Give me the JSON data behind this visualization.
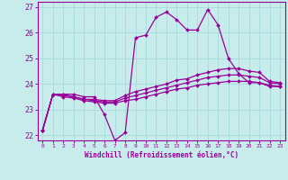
{
  "background_color": "#c8ecec",
  "grid_color": "#aadddd",
  "line_color": "#990099",
  "marker_color": "#990099",
  "xlabel": "Windchill (Refroidissement éolien,°C)",
  "ylim": [
    21.8,
    27.2
  ],
  "xlim": [
    -0.5,
    23.5
  ],
  "yticks": [
    22,
    23,
    24,
    25,
    26,
    27
  ],
  "xticks": [
    0,
    1,
    2,
    3,
    4,
    5,
    6,
    7,
    8,
    9,
    10,
    11,
    12,
    13,
    14,
    15,
    16,
    17,
    18,
    19,
    20,
    21,
    22,
    23
  ],
  "series1_x": [
    0,
    1,
    2,
    3,
    4,
    5,
    6,
    7,
    8,
    9,
    10,
    11,
    12,
    13,
    14,
    15,
    16,
    17,
    18,
    19,
    20,
    21,
    22,
    23
  ],
  "series1_y": [
    22.2,
    23.6,
    23.6,
    23.6,
    23.5,
    23.5,
    22.8,
    21.8,
    22.1,
    25.8,
    25.9,
    26.6,
    26.8,
    26.5,
    26.1,
    26.1,
    26.9,
    26.3,
    25.0,
    24.4,
    24.05,
    24.05,
    23.9,
    23.9
  ],
  "series2_x": [
    0,
    1,
    2,
    3,
    4,
    5,
    6,
    7,
    8,
    9,
    10,
    11,
    12,
    13,
    14,
    15,
    16,
    17,
    18,
    19,
    20,
    21,
    22,
    23
  ],
  "series2_y": [
    22.2,
    23.6,
    23.6,
    23.5,
    23.4,
    23.4,
    23.35,
    23.35,
    23.55,
    23.7,
    23.8,
    23.9,
    24.0,
    24.15,
    24.2,
    24.35,
    24.45,
    24.55,
    24.6,
    24.6,
    24.5,
    24.45,
    24.1,
    24.05
  ],
  "series3_x": [
    0,
    1,
    2,
    3,
    4,
    5,
    6,
    7,
    8,
    9,
    10,
    11,
    12,
    13,
    14,
    15,
    16,
    17,
    18,
    19,
    20,
    21,
    22,
    23
  ],
  "series3_y": [
    22.2,
    23.6,
    23.55,
    23.5,
    23.4,
    23.35,
    23.3,
    23.3,
    23.45,
    23.55,
    23.65,
    23.75,
    23.85,
    23.95,
    24.05,
    24.15,
    24.25,
    24.3,
    24.35,
    24.35,
    24.3,
    24.25,
    24.05,
    24.0
  ],
  "series4_x": [
    0,
    1,
    2,
    3,
    4,
    5,
    6,
    7,
    8,
    9,
    10,
    11,
    12,
    13,
    14,
    15,
    16,
    17,
    18,
    19,
    20,
    21,
    22,
    23
  ],
  "series4_y": [
    22.2,
    23.6,
    23.5,
    23.45,
    23.35,
    23.3,
    23.25,
    23.25,
    23.35,
    23.4,
    23.5,
    23.6,
    23.7,
    23.8,
    23.85,
    23.95,
    24.0,
    24.05,
    24.1,
    24.1,
    24.1,
    24.05,
    23.95,
    23.9
  ]
}
